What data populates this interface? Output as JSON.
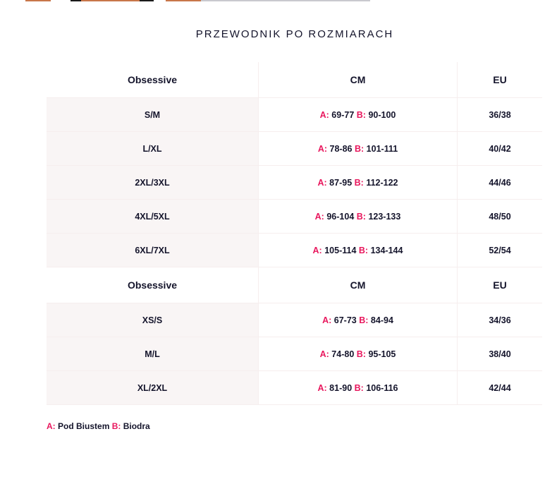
{
  "title": "PRZEWODNIK PO ROZMIARACH",
  "top_strip_colors": [
    "#c8764a",
    "#ffffff",
    "#1a1a1a",
    "#c8764a",
    "#1a1a1a",
    "#ffffff",
    "#c8764a",
    "#c9c9cf"
  ],
  "accent_color": "#e8175d",
  "tables": [
    {
      "headers": [
        "Obsessive",
        "CM",
        "EU"
      ],
      "rows": [
        {
          "size": "S/M",
          "a": "69-77",
          "b": "90-100",
          "eu": "36/38"
        },
        {
          "size": "L/XL",
          "a": "78-86",
          "b": "101-111",
          "eu": "40/42"
        },
        {
          "size": "2XL/3XL",
          "a": "87-95",
          "b": "112-122",
          "eu": "44/46"
        },
        {
          "size": "4XL/5XL",
          "a": "96-104",
          "b": "123-133",
          "eu": "48/50"
        },
        {
          "size": "6XL/7XL",
          "a": "105-114",
          "b": "134-144",
          "eu": "52/54"
        }
      ]
    },
    {
      "headers": [
        "Obsessive",
        "CM",
        "EU"
      ],
      "rows": [
        {
          "size": "XS/S",
          "a": "67-73",
          "b": "84-94",
          "eu": "34/36"
        },
        {
          "size": "M/L",
          "a": "74-80",
          "b": "95-105",
          "eu": "38/40"
        },
        {
          "size": "XL/2XL",
          "a": "81-90",
          "b": "106-116",
          "eu": "42/44"
        }
      ]
    }
  ],
  "labels": {
    "a": "A:",
    "b": "B:"
  },
  "legend": {
    "a_key": "A:",
    "a_text": "Pod Biustem",
    "b_key": "B:",
    "b_text": "Biodra"
  }
}
